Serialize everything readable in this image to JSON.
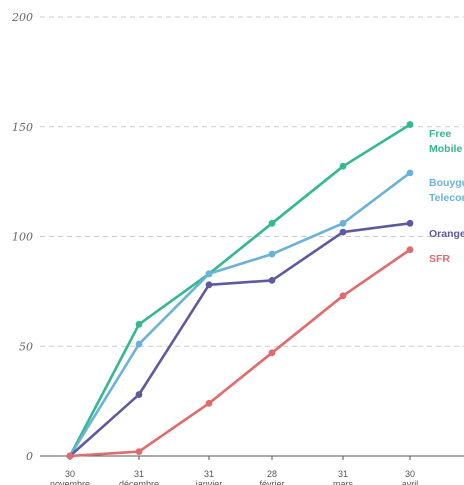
{
  "chart_data": {
    "type": "line",
    "x": [
      {
        "top": "30",
        "bottom": "novembre"
      },
      {
        "top": "31",
        "bottom": "décembre"
      },
      {
        "top": "31",
        "bottom": "janvier"
      },
      {
        "top": "28",
        "bottom": "février"
      },
      {
        "top": "31",
        "bottom": "mars"
      },
      {
        "top": "30",
        "bottom": "avril"
      }
    ],
    "ylim": [
      0,
      200
    ],
    "yticks": [
      "0",
      "50",
      "100",
      "150",
      "200"
    ],
    "grid": true,
    "legend_placement": "right, at line ends",
    "series": [
      {
        "name": "Free Mobile",
        "name_lines": [
          "Free",
          "Mobile"
        ],
        "color": "#33b88f",
        "values": [
          0,
          60,
          83,
          106,
          132,
          151
        ]
      },
      {
        "name": "Bouygues Telecom",
        "name_lines": [
          "Bouygues",
          "Telecom"
        ],
        "color": "#6ab3d8",
        "values": [
          0,
          51,
          83,
          92,
          106,
          129
        ]
      },
      {
        "name": "Orange",
        "name_lines": [
          "Orange"
        ],
        "color": "#5e5aa0",
        "values": [
          0,
          28,
          78,
          80,
          102,
          106
        ]
      },
      {
        "name": "SFR",
        "name_lines": [
          "SFR"
        ],
        "color": "#e06b6b",
        "values": [
          0,
          2,
          24,
          47,
          73,
          94
        ]
      }
    ]
  }
}
